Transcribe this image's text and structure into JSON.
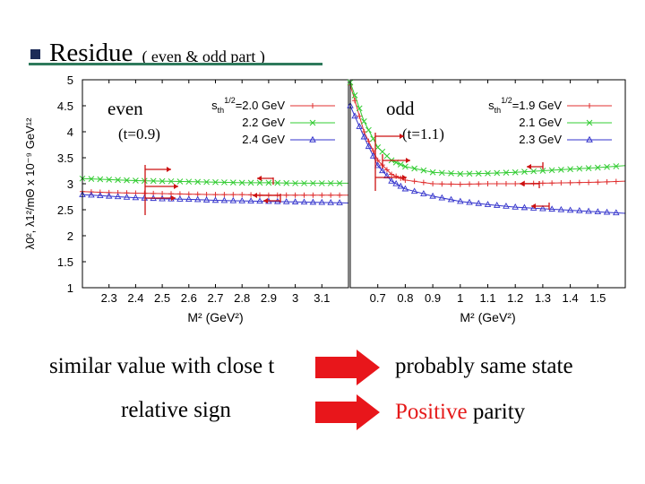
{
  "slide": {
    "title": "Residue",
    "subtitle": "( even & odd part )",
    "bullet_color": "#1d2b57",
    "underline_color": "#2e7a5c",
    "caption_left_1": "similar value with close t",
    "caption_left_2": "relative sign",
    "caption_right_1": "probably same state",
    "caption_right_2_highlight": "Positive",
    "caption_right_2_rest": " parity",
    "highlight_color": "#e51a1a",
    "big_arrow_color": "#e8161b"
  },
  "chart_data": [
    {
      "type": "line",
      "panel_label": "even",
      "t_label": "(t=0.9)",
      "ylabel": "λ0², λ1²/mΘ x 10⁻⁹ GeV¹²",
      "xlabel": "M² (GeV²)",
      "xlim": [
        2.2,
        3.2
      ],
      "ylim": [
        1,
        5
      ],
      "xticks": [
        "2.3",
        "2.4",
        "2.5",
        "2.6",
        "2.7",
        "2.8",
        "2.9",
        "3",
        "3.1"
      ],
      "yticks": [
        "1",
        "1.5",
        "2",
        "2.5",
        "3",
        "3.5",
        "4",
        "4.5",
        "5"
      ],
      "legend_position": "top-right",
      "x": [
        2.2,
        2.3,
        2.4,
        2.5,
        2.6,
        2.7,
        2.8,
        2.9,
        3.0,
        3.1,
        3.2
      ],
      "series": [
        {
          "name": "s_th^1/2=2.0 GeV",
          "color": "#e03030",
          "marker": "plus",
          "values": [
            2.85,
            2.83,
            2.82,
            2.81,
            2.8,
            2.79,
            2.79,
            2.78,
            2.78,
            2.78,
            2.78
          ]
        },
        {
          "name": "2.2 GeV",
          "color": "#33cc33",
          "marker": "cross",
          "values": [
            3.1,
            3.08,
            3.06,
            3.05,
            3.04,
            3.03,
            3.02,
            3.02,
            3.01,
            3.01,
            3.01
          ]
        },
        {
          "name": "2.4 GeV",
          "color": "#3333cc",
          "marker": "triangle",
          "values": [
            2.79,
            2.76,
            2.73,
            2.71,
            2.7,
            2.68,
            2.67,
            2.66,
            2.65,
            2.64,
            2.63
          ]
        }
      ]
    },
    {
      "type": "line",
      "panel_label": "odd",
      "t_label": "(t=1.1)",
      "xlabel": "M² (GeV²)",
      "xlim": [
        0.6,
        1.6
      ],
      "ylim": [
        1,
        5
      ],
      "xticks": [
        "0.7",
        "0.8",
        "0.9",
        "1",
        "1.1",
        "1.2",
        "1.3",
        "1.4",
        "1.5"
      ],
      "legend_position": "top-right",
      "x": [
        0.6,
        0.65,
        0.7,
        0.75,
        0.8,
        0.9,
        1.0,
        1.1,
        1.2,
        1.3,
        1.4,
        1.5,
        1.6
      ],
      "series": [
        {
          "name": "s_th^1/2=1.9 GeV",
          "color": "#e03030",
          "marker": "plus",
          "values": [
            4.9,
            4.0,
            3.45,
            3.18,
            3.07,
            3.0,
            2.99,
            3.0,
            3.0,
            3.01,
            3.02,
            3.03,
            3.05
          ]
        },
        {
          "name": "2.1 GeV",
          "color": "#33cc33",
          "marker": "cross",
          "values": [
            4.95,
            4.2,
            3.7,
            3.45,
            3.33,
            3.22,
            3.19,
            3.2,
            3.22,
            3.25,
            3.28,
            3.31,
            3.35
          ]
        },
        {
          "name": "2.3 GeV",
          "color": "#3333cc",
          "marker": "triangle",
          "values": [
            4.5,
            3.9,
            3.35,
            3.05,
            2.9,
            2.76,
            2.66,
            2.6,
            2.55,
            2.52,
            2.49,
            2.46,
            2.43
          ]
        }
      ]
    }
  ],
  "annotation_color": "#cc1111"
}
